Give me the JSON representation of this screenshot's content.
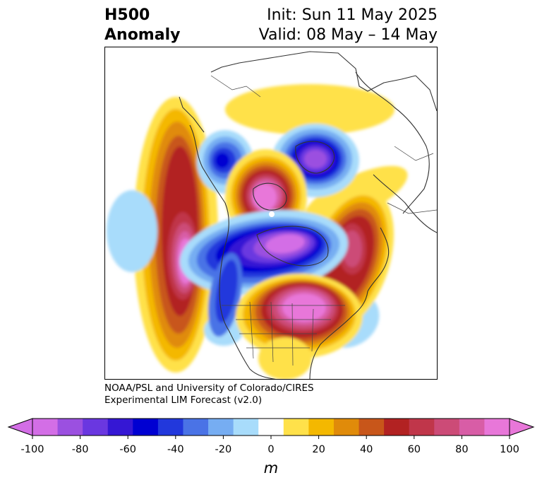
{
  "title": {
    "line1_left": "H500",
    "line2_left": "Anomaly",
    "line1_right": "Init: Sun 11 May 2025",
    "line2_right": "Valid: 08 May – 14 May"
  },
  "credit": {
    "line1": "NOAA/PSL and University of Colorado/CIRES",
    "line2": "Experimental LIM Forecast (v2.0)"
  },
  "colorbar": {
    "unit": "m",
    "ticks": [
      "-100",
      "-80",
      "-60",
      "-40",
      "-20",
      "0",
      "20",
      "40",
      "60",
      "80",
      "100"
    ],
    "levels": [
      -100,
      -90,
      -80,
      -70,
      -60,
      -50,
      -40,
      -30,
      -20,
      -10,
      10,
      20,
      30,
      40,
      50,
      60,
      70,
      80,
      90,
      100
    ],
    "colors": [
      "#d36ee6",
      "#9b50e0",
      "#6a37e0",
      "#3517d4",
      "#0000d2",
      "#2238dc",
      "#4a73e6",
      "#76adf2",
      "#a8dcfb",
      "#ffffff",
      "#ffe14a",
      "#f4b800",
      "#e08b0a",
      "#c8561a",
      "#b22222",
      "#c0364a",
      "#cc4b77",
      "#d85da6",
      "#e877d9"
    ]
  },
  "map": {
    "region": "North America / North Pacific / Arctic",
    "anomaly_centers": [
      {
        "id": "pacific-ridge",
        "sign": "positive",
        "peak_m": 100
      },
      {
        "id": "alaska-trough",
        "sign": "negative",
        "peak_m": -60
      },
      {
        "id": "arctic-ridge",
        "sign": "positive",
        "peak_m": 100
      },
      {
        "id": "siberia-trough",
        "sign": "negative",
        "peak_m": -100
      },
      {
        "id": "canada-trough",
        "sign": "negative",
        "peak_m": -100
      },
      {
        "id": "greenland-ridge",
        "sign": "positive",
        "peak_m": 90
      },
      {
        "id": "eastern-us-ridge",
        "sign": "positive",
        "peak_m": 100
      }
    ]
  }
}
